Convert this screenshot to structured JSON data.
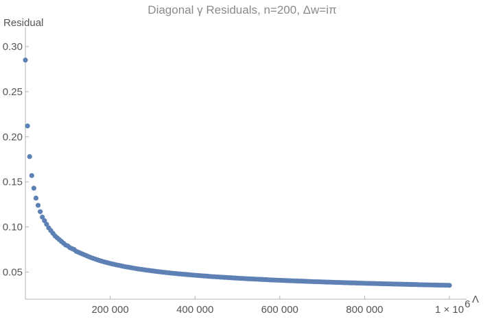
{
  "chart_data": {
    "type": "scatter",
    "title": "Diagonal γ Residuals, n=200, Δw=iπ",
    "xlabel": "Λ",
    "ylabel": "Residual",
    "xlim": [
      0,
      1000000
    ],
    "ylim": [
      0.02,
      0.3
    ],
    "x_ticks": [
      {
        "value": 200000,
        "label": "200 000"
      },
      {
        "value": 400000,
        "label": "400 000"
      },
      {
        "value": 600000,
        "label": "600 000"
      },
      {
        "value": 800000,
        "label": "800 000"
      },
      {
        "value": 1000000,
        "label": "1 × 10"
      }
    ],
    "x_tick_exponent": "6",
    "y_ticks": [
      {
        "value": 0.05,
        "label": "0.05"
      },
      {
        "value": 0.1,
        "label": "0.10"
      },
      {
        "value": 0.15,
        "label": "0.15"
      },
      {
        "value": 0.2,
        "label": "0.20"
      },
      {
        "value": 0.25,
        "label": "0.25"
      },
      {
        "value": 0.3,
        "label": "0.30"
      }
    ],
    "grid": false,
    "marker_color": "#5E81B5",
    "x_start": 0,
    "x_step": 5000,
    "y_values": [
      0.285,
      0.212,
      0.178,
      0.157,
      0.143,
      0.132,
      0.124,
      0.117,
      0.111,
      0.107,
      0.103,
      0.099,
      0.096,
      0.093,
      0.09,
      0.088,
      0.086,
      0.084,
      0.082,
      0.08,
      0.079,
      0.077,
      0.076,
      0.075,
      0.073,
      0.072,
      0.071,
      0.07,
      0.069,
      0.068,
      0.067,
      0.066,
      0.0652,
      0.0644,
      0.0636,
      0.0628,
      0.0621,
      0.0614,
      0.0608,
      0.0602,
      0.0596,
      0.059,
      0.0585,
      0.058,
      0.0575,
      0.057,
      0.0565,
      0.056,
      0.0556,
      0.0552,
      0.0548,
      0.0544,
      0.054,
      0.0536,
      0.0532,
      0.0529,
      0.0526,
      0.0522,
      0.0519,
      0.0516,
      0.0513,
      0.051,
      0.0507,
      0.0504,
      0.0501,
      0.0498,
      0.0496,
      0.0493,
      0.0491,
      0.0488,
      0.0486,
      0.0484,
      0.0481,
      0.0479,
      0.0477,
      0.0475,
      0.0473,
      0.0471,
      0.0469,
      0.0467,
      0.0465,
      0.0463,
      0.0461,
      0.0459,
      0.0457,
      0.0456,
      0.0454,
      0.0452,
      0.045,
      0.0449,
      0.0447,
      0.0446,
      0.0444,
      0.0443,
      0.0441,
      0.044,
      0.0438,
      0.0437,
      0.0435,
      0.0434,
      0.0433,
      0.0431,
      0.043,
      0.0429,
      0.0427,
      0.0426,
      0.0425,
      0.0424,
      0.0422,
      0.0421,
      0.042,
      0.0419,
      0.0418,
      0.0417,
      0.0416,
      0.0414,
      0.0413,
      0.0412,
      0.0411,
      0.041,
      0.0409,
      0.0408,
      0.0407,
      0.0406,
      0.0405,
      0.0404,
      0.0403,
      0.0402,
      0.0401,
      0.04,
      0.04,
      0.0399,
      0.0398,
      0.0397,
      0.0396,
      0.0395,
      0.0394,
      0.0393,
      0.0393,
      0.0392,
      0.0391,
      0.039,
      0.0389,
      0.0389,
      0.0388,
      0.0387,
      0.0386,
      0.0385,
      0.0385,
      0.0384,
      0.0383,
      0.0382,
      0.0382,
      0.0381,
      0.038,
      0.038,
      0.0379,
      0.0378,
      0.0378,
      0.0377,
      0.0376,
      0.0375,
      0.0375,
      0.0374,
      0.0374,
      0.0373,
      0.0372,
      0.0372,
      0.0371,
      0.037,
      0.037,
      0.0369,
      0.0369,
      0.0368,
      0.0367,
      0.0367,
      0.0366,
      0.0366,
      0.0365,
      0.0364,
      0.0364,
      0.0363,
      0.0363,
      0.0362,
      0.0362,
      0.0361,
      0.036,
      0.036,
      0.0359,
      0.0359,
      0.0358,
      0.0358,
      0.0357,
      0.0357,
      0.0356,
      0.0356,
      0.0355,
      0.0355,
      0.0354,
      0.0354,
      0.0353
    ]
  }
}
